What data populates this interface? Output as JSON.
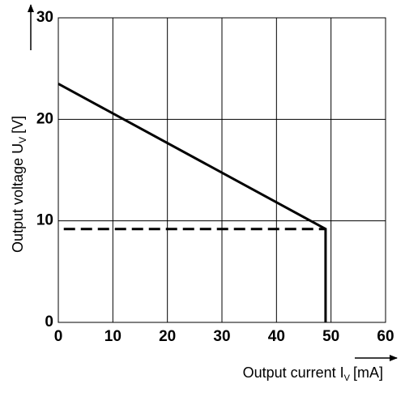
{
  "chart_data": {
    "type": "line",
    "xlabel": {
      "text": "Output current I",
      "sub": "V",
      "unit": "[mA]"
    },
    "ylabel": {
      "text": "Output voltage U",
      "sub": "V",
      "unit": "[V]"
    },
    "xlim": [
      0,
      60
    ],
    "xticks": [
      0,
      10,
      20,
      30,
      40,
      50,
      60
    ],
    "ylim": [
      0,
      30
    ],
    "yticks": [
      0,
      10,
      20,
      30
    ],
    "grid": true,
    "series": [
      {
        "color": "#000000",
        "style": "solid",
        "x": [
          0,
          49,
          49
        ],
        "values": [
          23.5,
          9.2,
          0
        ]
      },
      {
        "color": "#000000",
        "style": "dashed",
        "x": [
          1,
          49
        ],
        "values": [
          9.2,
          9.2
        ]
      }
    ]
  }
}
